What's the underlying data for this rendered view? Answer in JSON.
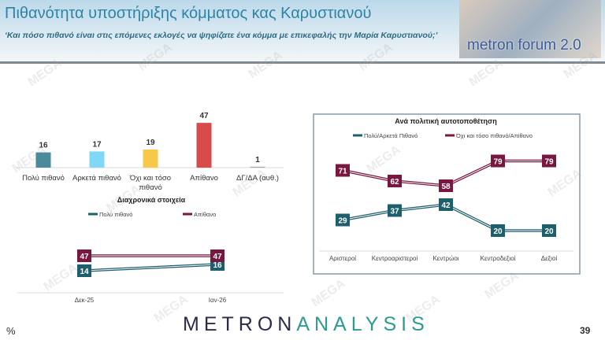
{
  "header": {
    "title": "Πιθανότητα υποστήριξης κόμματος κας Καρυστιανού",
    "subtitle": "‘Και πόσο πιθανό είναι στις επόμενες εκλογές να ψηφίζατε ένα κόμμα με επικεφαλής την Μαρία Καρυστιανού;’",
    "logo_text": "metron forum 2.0"
  },
  "footer": {
    "brand_a": "METRON",
    "brand_b": "ANALYSIS",
    "unit": "%",
    "page_number": "39"
  },
  "watermark": "MEGA",
  "chart_data": [
    {
      "type": "bar",
      "categories": [
        "Πολύ πιθανό",
        "Αρκετά πιθανό",
        "Όχι και τόσο πιθανό",
        "Απίθανο",
        "ΔΓ/ΔΑ (αυθ.)"
      ],
      "values": [
        16,
        17,
        19,
        47,
        1
      ],
      "colors": [
        "#4a8a9a",
        "#7fd8f5",
        "#f7c84a",
        "#d94a4a",
        "#aaaaaa"
      ]
    },
    {
      "type": "line",
      "title": "Διαχρονικά στοιχεία",
      "categories": [
        "Δεκ-25",
        "Ιαν-26"
      ],
      "series": [
        {
          "name": "Πολύ πιθανό",
          "values": [
            14,
            16
          ],
          "color": "#1e5f6e"
        },
        {
          "name": "Απίθανο",
          "values": [
            47,
            47
          ],
          "color": "#7a1740"
        }
      ]
    },
    {
      "type": "line",
      "title": "Ανά πολιτική αυτοτοποθέτηση",
      "categories": [
        "Αριστεροί",
        "Κεντροαριστεροί",
        "Κεντρώοι",
        "Κεντροδεξιοί",
        "Δεξιοί"
      ],
      "series": [
        {
          "name": "Πολύ/Αρκετά Πιθανό",
          "values": [
            29,
            37,
            42,
            20,
            20
          ],
          "color": "#1e5f6e"
        },
        {
          "name": "Όχι και τόσο πιθανό/Απίθανο",
          "values": [
            71,
            62,
            58,
            79,
            79
          ],
          "color": "#7a1740"
        }
      ]
    }
  ]
}
